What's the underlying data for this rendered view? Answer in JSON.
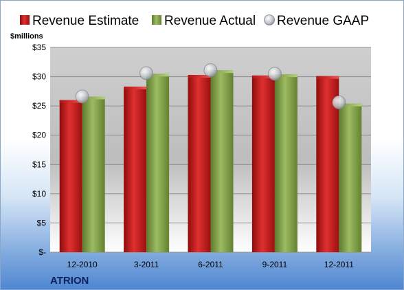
{
  "chart_data": {
    "type": "bar",
    "ylabel": "$millions",
    "categories": [
      "12-2010",
      "3-2011",
      "6-2011",
      "9-2011",
      "12-2011"
    ],
    "series": [
      {
        "name": "Revenue Estimate",
        "kind": "bar",
        "color": "#c01818",
        "values": [
          26.0,
          28.3,
          30.3,
          30.2,
          30.1
        ]
      },
      {
        "name": "Revenue Actual",
        "kind": "bar",
        "color": "#7f9f48",
        "values": [
          26.6,
          30.5,
          31.1,
          30.4,
          25.4
        ]
      },
      {
        "name": "Revenue GAAP",
        "kind": "marker",
        "color": "#b8bcc4",
        "values": [
          26.6,
          30.6,
          31.1,
          30.5,
          25.6
        ]
      }
    ],
    "ylim": [
      0,
      35
    ],
    "yticks": [
      0,
      5,
      10,
      15,
      20,
      25,
      30,
      35
    ],
    "ytick_labels": [
      "$-",
      "$5",
      "$10",
      "$15",
      "$20",
      "$25",
      "$30",
      "$35"
    ],
    "legend_position": "top",
    "grid": true
  },
  "company": "ATRION"
}
